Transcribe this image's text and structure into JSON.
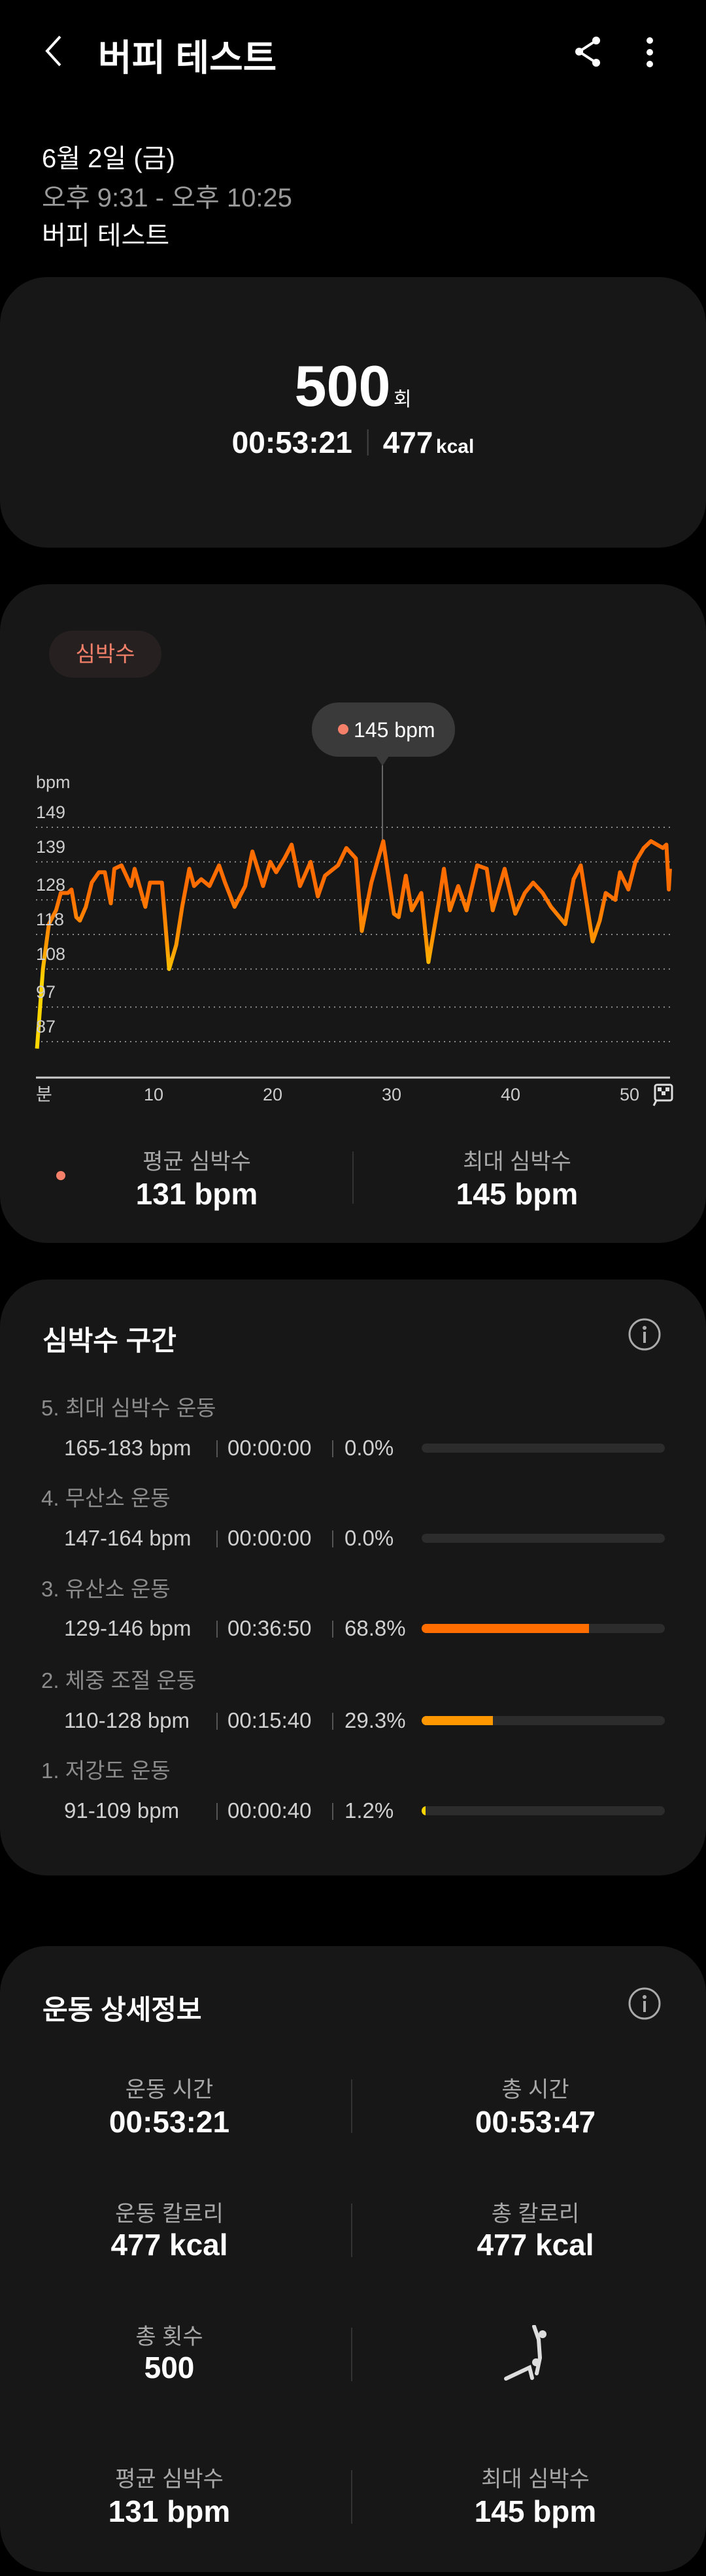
{
  "header": {
    "title": "버피 테스트",
    "back_icon": "chevron-left-icon",
    "share_icon": "share-icon",
    "more_icon": "more-vertical-icon"
  },
  "info": {
    "date": "6월 2일 (금)",
    "time_range": "오후 9:31 - 오후 10:25",
    "name": "버피 테스트"
  },
  "summary": {
    "count": "500",
    "count_unit": "회",
    "duration": "00:53:21",
    "calories": "477",
    "calories_unit": "kcal"
  },
  "heart": {
    "tab": "심박수",
    "tooltip": "145 bpm",
    "avg_label": "평균 심박수",
    "avg_value": "131 bpm",
    "max_label": "최대 심박수",
    "max_value": "145 bpm",
    "accent": "#f4806a"
  },
  "chart_data": {
    "type": "line",
    "ylabel": "bpm",
    "xlabel": "분",
    "x_ticks": [
      10,
      20,
      30,
      40,
      50
    ],
    "y_ticks": [
      149,
      139,
      128,
      118,
      108,
      97,
      87
    ],
    "ylim": [
      87,
      149
    ],
    "xlim": [
      0,
      53.4
    ],
    "grid": "horizontal-dotted",
    "end_icon": "finish-flag-icon",
    "x": [
      0.2,
      0.7,
      1.2,
      1.8,
      2.2,
      2.8,
      3.1,
      3.5,
      3.8,
      4.3,
      4.8,
      5.4,
      5.9,
      6.4,
      6.7,
      7.3,
      8.1,
      8.4,
      9.3,
      9.7,
      10.7,
      11.3,
      11.9,
      12.4,
      13,
      13.4,
      14,
      14.7,
      15.5,
      16,
      16.8,
      17.7,
      18.3,
      19.2,
      19.8,
      20.3,
      21,
      21.6,
      22.3,
      23.2,
      23.8,
      24.4,
      25.5,
      26.2,
      27,
      27.5,
      28.3,
      29.3,
      30.2,
      30.6,
      31.2,
      31.7,
      32.5,
      33.1,
      34,
      34.4,
      34.9,
      35.6,
      36.3,
      37.2,
      38,
      38.5,
      39.5,
      40.4,
      41.2,
      41.9,
      42.7,
      43.4,
      44.6,
      45.3,
      45.9,
      46.9,
      47.5,
      48,
      48.8,
      49.2,
      49.9,
      50.5,
      51.2,
      51.8,
      52.8,
      53.1,
      53.3,
      53.4
    ],
    "y": [
      85,
      108,
      121,
      125,
      130,
      130,
      131,
      123,
      122,
      126,
      133,
      136,
      136,
      127,
      137,
      138,
      132,
      137,
      126,
      133,
      133,
      108,
      115,
      126,
      137,
      132,
      134,
      132,
      138,
      133,
      126,
      132,
      142,
      132,
      139,
      136,
      140,
      144,
      132,
      139,
      129,
      135,
      138,
      143,
      140,
      119,
      133,
      145,
      124,
      123,
      135,
      125,
      130,
      110,
      128,
      137,
      125,
      132,
      125,
      138,
      137,
      125,
      137,
      124,
      130,
      133,
      130,
      126,
      121,
      134,
      138,
      116,
      122,
      130,
      128,
      136,
      131,
      139,
      143,
      145,
      143,
      144,
      131,
      137
    ],
    "colors": {
      "high": "#ff6d00",
      "mid": "#ff9800",
      "low": "#ffd600"
    }
  },
  "zones": {
    "title": "심박수 구간",
    "info_icon": "info-icon",
    "items": [
      {
        "label": "5. 최대 심박수 운동",
        "range": "165-183 bpm",
        "time": "00:00:00",
        "pct": "0.0%",
        "fraction": 0,
        "color": "#ff3d00"
      },
      {
        "label": "4. 무산소 운동",
        "range": "147-164 bpm",
        "time": "00:00:00",
        "pct": "0.0%",
        "fraction": 0,
        "color": "#ff5500"
      },
      {
        "label": "3. 유산소 운동",
        "range": "129-146 bpm",
        "time": "00:36:50",
        "pct": "68.8%",
        "fraction": 0.688,
        "color": "#ff6d00"
      },
      {
        "label": "2. 체중 조절 운동",
        "range": "110-128 bpm",
        "time": "00:15:40",
        "pct": "29.3%",
        "fraction": 0.293,
        "color": "#ff9800"
      },
      {
        "label": "1. 저강도 운동",
        "range": "91-109 bpm",
        "time": "00:00:40",
        "pct": "1.2%",
        "fraction": 0.012,
        "color": "#ffd600"
      }
    ]
  },
  "details": {
    "title": "운동 상세정보",
    "info_icon": "info-icon",
    "workout_icon": "burpee-icon",
    "items": [
      {
        "label": "운동 시간",
        "value": "00:53:21"
      },
      {
        "label": "총 시간",
        "value": "00:53:47"
      },
      {
        "label": "운동 칼로리",
        "value": "477 kcal"
      },
      {
        "label": "총 칼로리",
        "value": "477 kcal"
      },
      {
        "label": "총 횟수",
        "value": "500"
      },
      {
        "label": "평균 심박수",
        "value": "131 bpm"
      },
      {
        "label": "최대 심박수",
        "value": "145 bpm"
      }
    ]
  }
}
